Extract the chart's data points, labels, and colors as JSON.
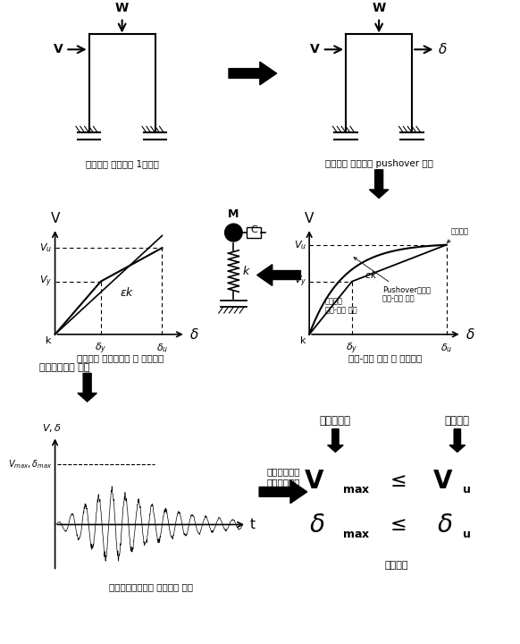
{
  "labels": {
    "struct1": "단자유도 구조물의 1차설계",
    "struct2": "단자유도 구조물의 pushover 해석",
    "graph1": "이상화된 단자유도계 및 이력특성",
    "graph2": "하중-변위 곡선 및 극한변위",
    "input": "입력지진파의 선택",
    "time_resp": "단자유도계의\n시간이력응답",
    "nonlin": "비선형동적해석의 최대응답 평가",
    "perf_eval": "성능평가",
    "perf_demand": "성능요구량",
    "perf_capacity": "성능역량",
    "limit_disp": "극한변위",
    "pushover_curve": "Pushover해석의\n하중-변위 곡선",
    "ideal_curve": "이상화된\n하중-변위 곡선"
  }
}
